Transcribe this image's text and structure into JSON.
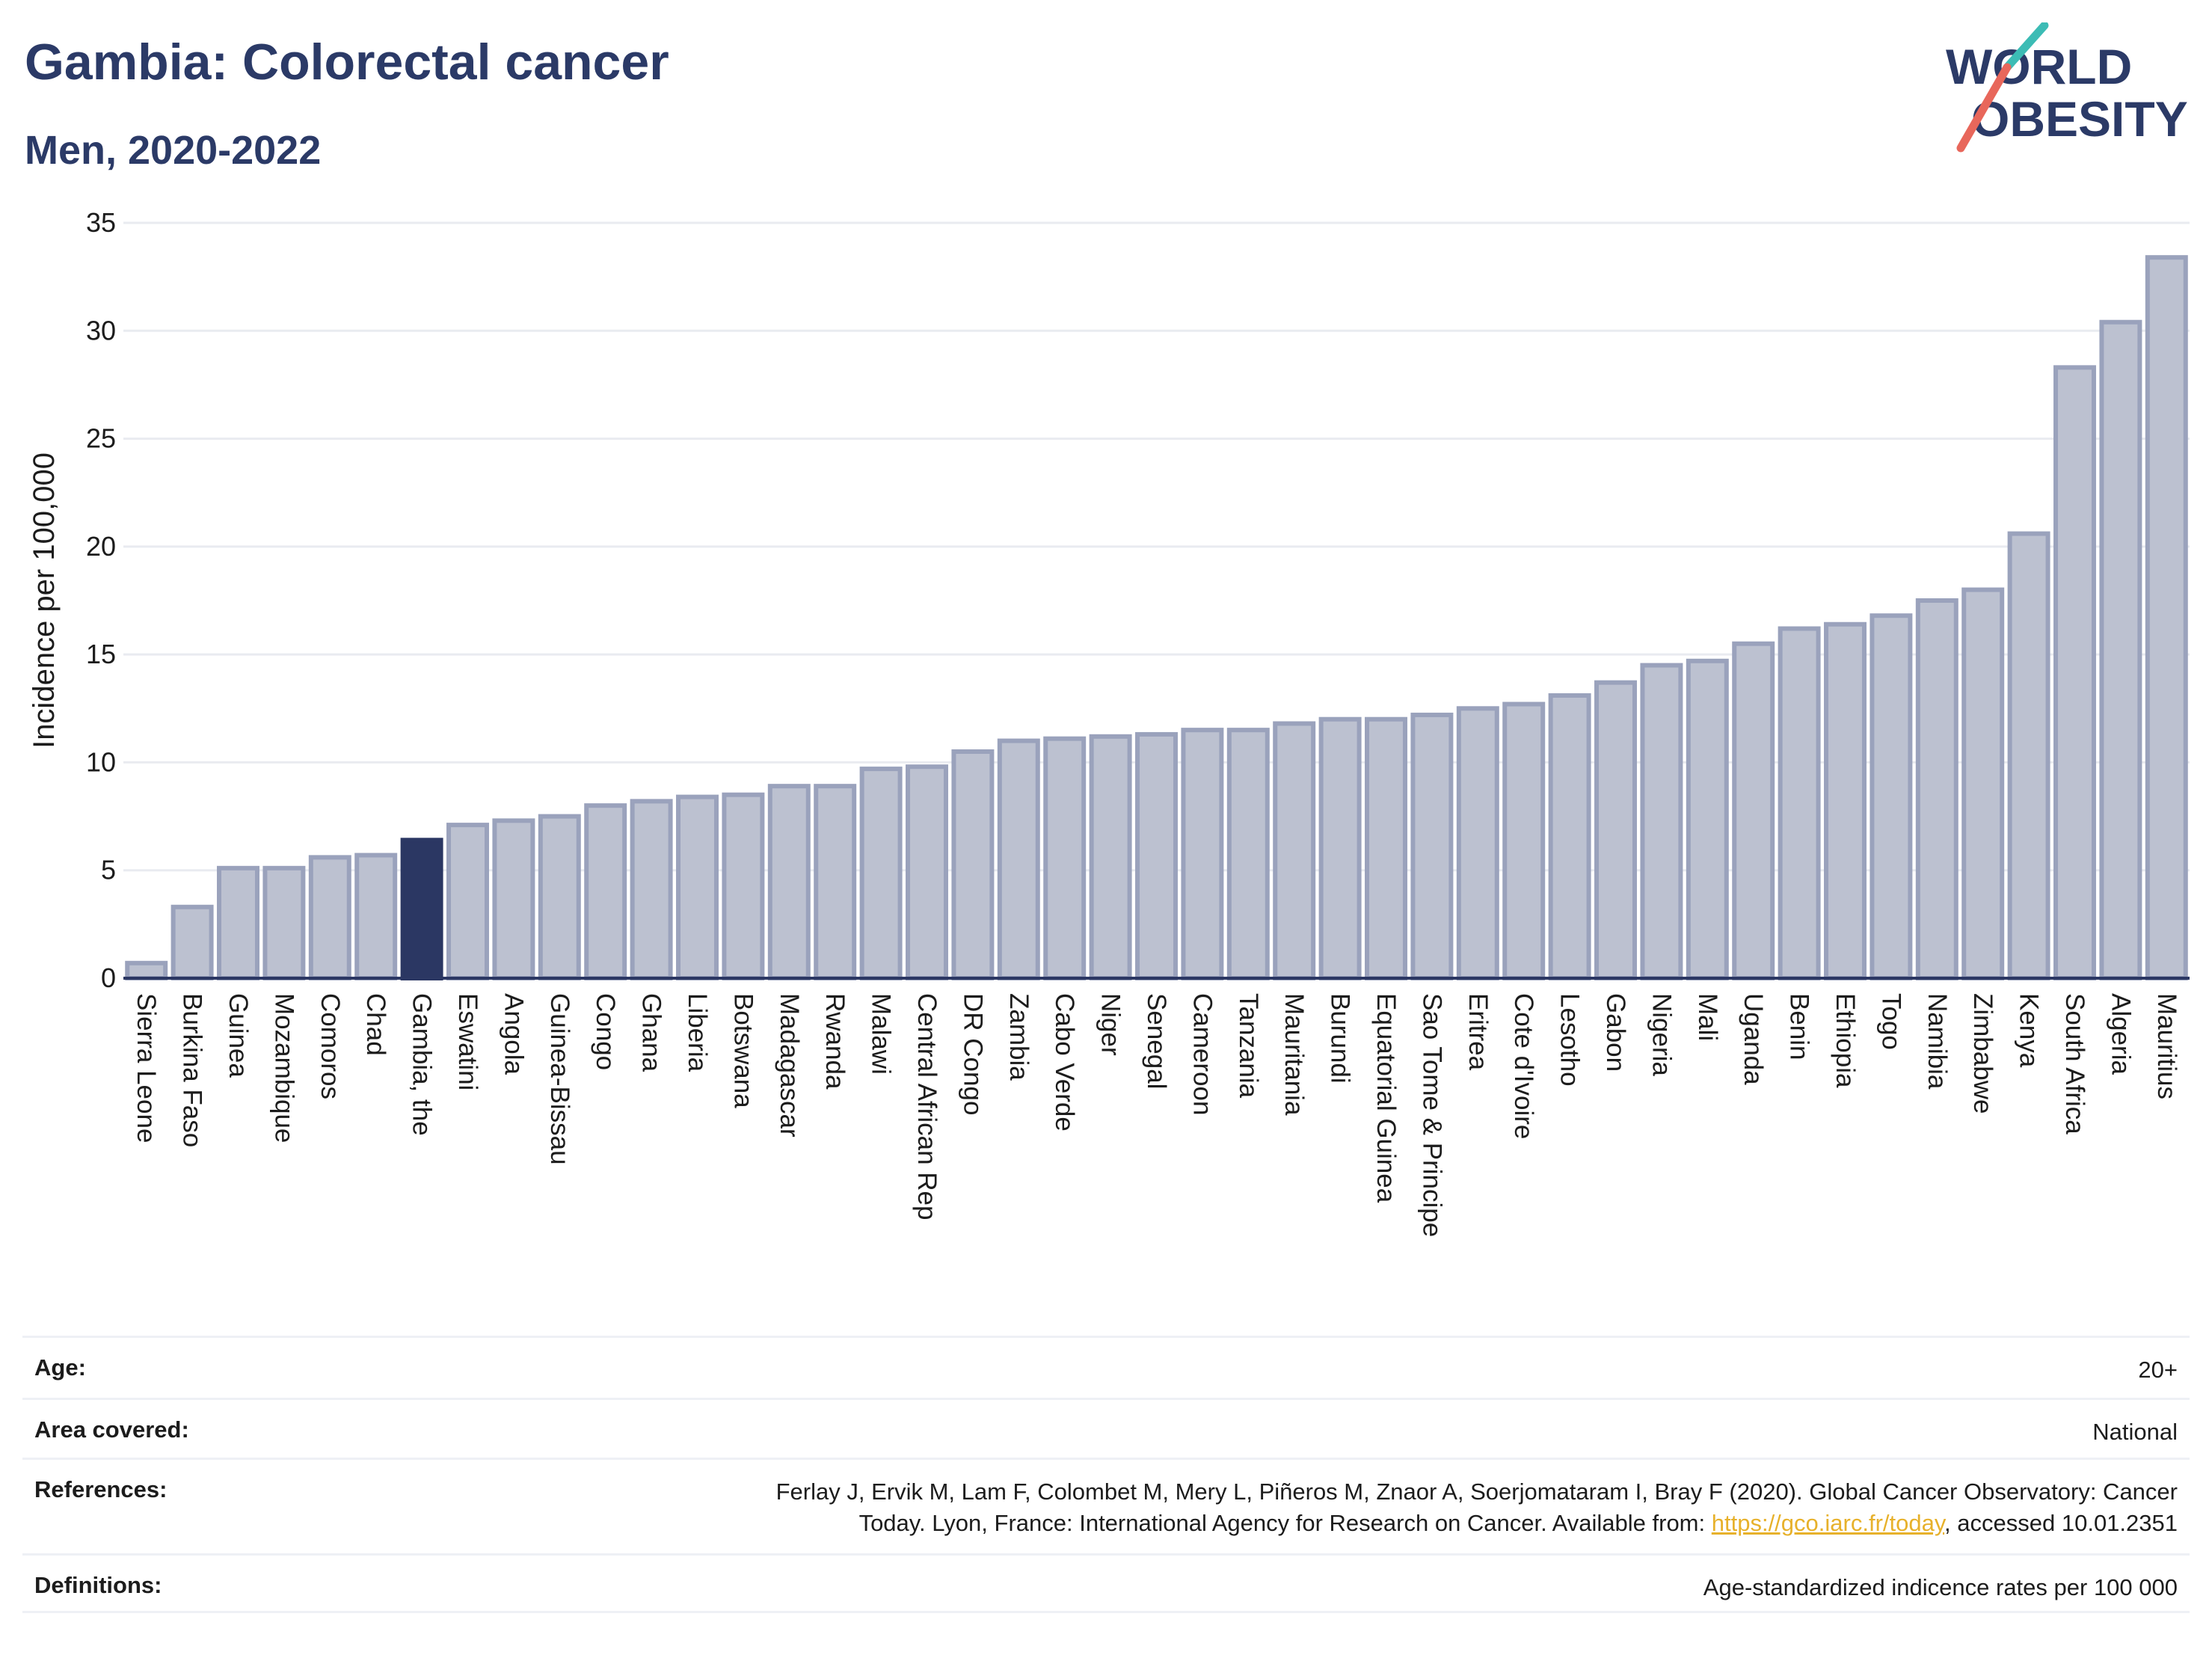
{
  "header": {
    "title": "Gambia: Colorectal cancer",
    "subtitle": "Men, 2020-2022"
  },
  "logo": {
    "line1": "WORLD",
    "line2": "OBESITY",
    "colors": {
      "text": "#2b3a67",
      "teal": "#3cbcb5",
      "coral": "#e8675b"
    }
  },
  "chart_data": {
    "type": "bar",
    "ylabel": "Incidence per 100,000",
    "ylim": [
      0,
      35
    ],
    "yticks": [
      0,
      5,
      10,
      15,
      20,
      25,
      30,
      35
    ],
    "grid": true,
    "highlight": "Gambia, the",
    "colors": {
      "bar": "#bcc1d0",
      "bar_stroke": "#9aa2bc",
      "highlight": "#2b3763",
      "axis": "#2b3763",
      "grid": "#e9ebf0"
    },
    "categories": [
      "Sierra Leone",
      "Burkina Faso",
      "Guinea",
      "Mozambique",
      "Comoros",
      "Chad",
      "Gambia, the",
      "Eswatini",
      "Angola",
      "Guinea-Bissau",
      "Congo",
      "Ghana",
      "Liberia",
      "Botswana",
      "Madagascar",
      "Rwanda",
      "Malawi",
      "Central African Rep",
      "DR Congo",
      "Zambia",
      "Cabo Verde",
      "Niger",
      "Senegal",
      "Cameroon",
      "Tanzania",
      "Mauritania",
      "Burundi",
      "Equatorial Guinea",
      "Sao Tome & Principe",
      "Eritrea",
      "Cote d'Ivoire",
      "Lesotho",
      "Gabon",
      "Nigeria",
      "Mali",
      "Uganda",
      "Benin",
      "Ethiopia",
      "Togo",
      "Namibia",
      "Zimbabwe",
      "Kenya",
      "South Africa",
      "Algeria",
      "Mauritius"
    ],
    "values": [
      0.7,
      3.3,
      5.1,
      5.1,
      5.6,
      5.7,
      6.4,
      7.1,
      7.3,
      7.5,
      8.0,
      8.2,
      8.4,
      8.5,
      8.9,
      8.9,
      9.7,
      9.8,
      10.5,
      11.0,
      11.1,
      11.2,
      11.3,
      11.5,
      11.5,
      11.8,
      12.0,
      12.0,
      12.2,
      12.5,
      12.7,
      13.1,
      13.7,
      14.5,
      14.7,
      15.5,
      16.2,
      16.4,
      16.8,
      17.5,
      18.0,
      20.6,
      28.3,
      30.4,
      33.4
    ]
  },
  "meta": {
    "age_label": "Age:",
    "age_value": "20+",
    "area_label": "Area covered:",
    "area_value": "National",
    "references_label": "References:",
    "references_line1": "Ferlay J, Ervik M, Lam F, Colombet M, Mery L, Piñeros M, Znaor A, Soerjomataram I, Bray F (2020). Global Cancer Observatory: Cancer",
    "references_line2_pre": "Today. Lyon, France: International Agency for Research on Cancer. Available from: ",
    "references_link": "https://gco.iarc.fr/today",
    "references_line2_post": ", accessed 10.01.2351",
    "definitions_label": "Definitions:",
    "definitions_value": "Age-standardized indicence rates per 100 000"
  }
}
